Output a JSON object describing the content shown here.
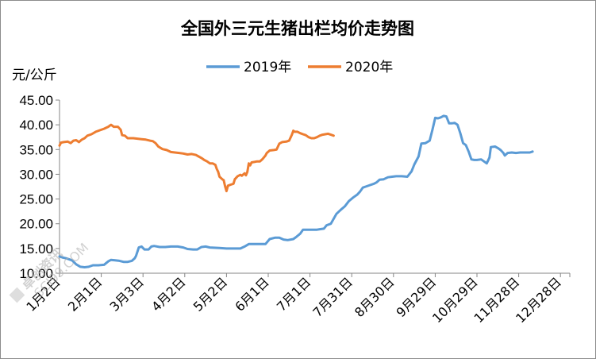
{
  "chart_data": {
    "type": "line",
    "title": "全国外三元生猪出栏均价走势图",
    "ylabel": "元/公斤",
    "ylim": [
      10,
      45
    ],
    "yticks": [
      "10.00",
      "15.00",
      "20.00",
      "25.00",
      "30.00",
      "35.00",
      "40.00",
      "45.00"
    ],
    "xticks": [
      "1月2日",
      "2月1日",
      "3月3日",
      "4月2日",
      "5月2日",
      "6月1日",
      "7月1日",
      "7月31日",
      "8月30日",
      "9月29日",
      "10月29日",
      "11月28日",
      "12月28日"
    ],
    "legend_position": "top",
    "grid": false,
    "series": [
      {
        "name": "2019年",
        "color": "#5b9bd5",
        "points": [
          [
            0,
            13.4
          ],
          [
            2,
            13.2
          ],
          [
            5,
            13.0
          ],
          [
            9,
            12.6
          ],
          [
            12,
            11.8
          ],
          [
            15,
            11.3
          ],
          [
            18,
            11.2
          ],
          [
            21,
            11.3
          ],
          [
            24,
            11.6
          ],
          [
            28,
            11.6
          ],
          [
            32,
            11.7
          ],
          [
            35,
            12.4
          ],
          [
            37,
            12.7
          ],
          [
            40,
            12.6
          ],
          [
            43,
            12.5
          ],
          [
            46,
            12.3
          ],
          [
            49,
            12.3
          ],
          [
            52,
            12.5
          ],
          [
            54,
            13.0
          ],
          [
            55,
            13.5
          ],
          [
            57,
            15.2
          ],
          [
            59,
            15.4
          ],
          [
            61,
            14.8
          ],
          [
            64,
            14.8
          ],
          [
            66,
            15.4
          ],
          [
            68,
            15.5
          ],
          [
            72,
            15.3
          ],
          [
            76,
            15.3
          ],
          [
            80,
            15.4
          ],
          [
            85,
            15.4
          ],
          [
            89,
            15.2
          ],
          [
            92,
            14.9
          ],
          [
            96,
            14.8
          ],
          [
            99,
            14.8
          ],
          [
            102,
            15.3
          ],
          [
            105,
            15.4
          ],
          [
            108,
            15.2
          ],
          [
            115,
            15.1
          ],
          [
            120,
            15.0
          ],
          [
            126,
            15.0
          ],
          [
            130,
            15.0
          ],
          [
            133,
            15.4
          ],
          [
            136,
            15.9
          ],
          [
            140,
            15.9
          ],
          [
            145,
            15.9
          ],
          [
            148,
            15.9
          ],
          [
            151,
            16.9
          ],
          [
            155,
            17.2
          ],
          [
            158,
            17.2
          ],
          [
            161,
            16.8
          ],
          [
            164,
            16.7
          ],
          [
            168,
            16.9
          ],
          [
            170,
            17.3
          ],
          [
            173,
            18.0
          ],
          [
            175,
            18.8
          ],
          [
            178,
            18.8
          ],
          [
            182,
            18.8
          ],
          [
            185,
            18.8
          ],
          [
            187,
            18.9
          ],
          [
            190,
            19.0
          ],
          [
            192,
            19.7
          ],
          [
            195,
            20.0
          ],
          [
            197,
            21.0
          ],
          [
            199,
            22.0
          ],
          [
            202,
            22.8
          ],
          [
            205,
            23.5
          ],
          [
            208,
            24.6
          ],
          [
            211,
            25.3
          ],
          [
            214,
            25.9
          ],
          [
            216,
            26.5
          ],
          [
            218,
            27.3
          ],
          [
            220,
            27.5
          ],
          [
            223,
            27.8
          ],
          [
            226,
            28.1
          ],
          [
            228,
            28.4
          ],
          [
            230,
            28.9
          ],
          [
            233,
            29.0
          ],
          [
            236,
            29.4
          ],
          [
            239,
            29.5
          ],
          [
            242,
            29.6
          ],
          [
            246,
            29.6
          ],
          [
            250,
            29.5
          ],
          [
            253,
            30.6
          ],
          [
            255,
            32.0
          ],
          [
            258,
            33.6
          ],
          [
            260,
            36.2
          ],
          [
            263,
            36.3
          ],
          [
            266,
            36.8
          ],
          [
            268,
            39.0
          ],
          [
            270,
            41.4
          ],
          [
            272,
            41.3
          ],
          [
            274,
            41.5
          ],
          [
            276,
            41.8
          ],
          [
            278,
            41.7
          ],
          [
            280,
            40.3
          ],
          [
            282,
            40.3
          ],
          [
            284,
            40.4
          ],
          [
            286,
            40.0
          ],
          [
            288,
            38.3
          ],
          [
            290,
            36.3
          ],
          [
            292,
            35.9
          ],
          [
            294,
            34.6
          ],
          [
            296,
            33.0
          ],
          [
            298,
            32.9
          ],
          [
            300,
            32.9
          ],
          [
            303,
            33.0
          ],
          [
            305,
            32.6
          ],
          [
            307,
            32.2
          ],
          [
            309,
            33.4
          ],
          [
            310,
            35.5
          ],
          [
            313,
            35.6
          ],
          [
            315,
            35.3
          ],
          [
            317,
            34.9
          ],
          [
            319,
            34.3
          ],
          [
            320,
            33.8
          ],
          [
            322,
            34.3
          ],
          [
            325,
            34.4
          ],
          [
            328,
            34.3
          ],
          [
            331,
            34.4
          ],
          [
            335,
            34.4
          ],
          [
            338,
            34.4
          ],
          [
            340,
            34.6
          ]
        ]
      },
      {
        "name": "2020年",
        "color": "#ed7d31",
        "points": [
          [
            0,
            35.8
          ],
          [
            1,
            36.4
          ],
          [
            3,
            36.5
          ],
          [
            6,
            36.6
          ],
          [
            8,
            36.3
          ],
          [
            10,
            36.8
          ],
          [
            12,
            36.9
          ],
          [
            14,
            36.5
          ],
          [
            16,
            37.0
          ],
          [
            18,
            37.3
          ],
          [
            20,
            37.8
          ],
          [
            23,
            38.1
          ],
          [
            26,
            38.6
          ],
          [
            29,
            38.9
          ],
          [
            32,
            39.2
          ],
          [
            35,
            39.6
          ],
          [
            37,
            40.0
          ],
          [
            39,
            39.6
          ],
          [
            42,
            39.6
          ],
          [
            44,
            39.0
          ],
          [
            45,
            37.9
          ],
          [
            47,
            37.8
          ],
          [
            49,
            37.3
          ],
          [
            51,
            37.3
          ],
          [
            53,
            37.3
          ],
          [
            56,
            37.2
          ],
          [
            59,
            37.1
          ],
          [
            62,
            37.0
          ],
          [
            65,
            36.8
          ],
          [
            67,
            36.7
          ],
          [
            69,
            36.3
          ],
          [
            71,
            35.6
          ],
          [
            74,
            35.1
          ],
          [
            77,
            34.9
          ],
          [
            80,
            34.5
          ],
          [
            83,
            34.4
          ],
          [
            86,
            34.3
          ],
          [
            89,
            34.2
          ],
          [
            92,
            34.0
          ],
          [
            95,
            34.1
          ],
          [
            98,
            33.9
          ],
          [
            100,
            33.6
          ],
          [
            102,
            33.3
          ],
          [
            104,
            32.9
          ],
          [
            106,
            32.6
          ],
          [
            108,
            32.2
          ],
          [
            110,
            32.2
          ],
          [
            112,
            31.9
          ],
          [
            113,
            31.1
          ],
          [
            114,
            30.5
          ],
          [
            115,
            29.5
          ],
          [
            117,
            29.0
          ],
          [
            118,
            28.8
          ],
          [
            119,
            27.6
          ],
          [
            120,
            26.6
          ],
          [
            121,
            27.7
          ],
          [
            123,
            27.9
          ],
          [
            125,
            28.1
          ],
          [
            126,
            29.0
          ],
          [
            128,
            29.6
          ],
          [
            130,
            29.9
          ],
          [
            131,
            29.7
          ],
          [
            133,
            30.2
          ],
          [
            134,
            29.8
          ],
          [
            135,
            30.5
          ],
          [
            136,
            32.2
          ],
          [
            137,
            31.8
          ],
          [
            138,
            32.4
          ],
          [
            140,
            32.5
          ],
          [
            142,
            32.6
          ],
          [
            144,
            32.6
          ],
          [
            146,
            33.1
          ],
          [
            148,
            33.8
          ],
          [
            149,
            34.3
          ],
          [
            151,
            34.8
          ],
          [
            154,
            34.9
          ],
          [
            156,
            35.0
          ],
          [
            158,
            36.2
          ],
          [
            160,
            36.5
          ],
          [
            163,
            36.6
          ],
          [
            165,
            36.8
          ],
          [
            167,
            38.0
          ],
          [
            168,
            38.8
          ],
          [
            169,
            38.6
          ],
          [
            171,
            38.6
          ],
          [
            173,
            38.3
          ],
          [
            175,
            38.1
          ],
          [
            177,
            37.9
          ],
          [
            179,
            37.5
          ],
          [
            181,
            37.3
          ],
          [
            183,
            37.3
          ],
          [
            185,
            37.5
          ],
          [
            187,
            37.8
          ],
          [
            189,
            38.0
          ],
          [
            191,
            38.1
          ],
          [
            193,
            38.2
          ],
          [
            195,
            38.0
          ],
          [
            197,
            37.8
          ]
        ]
      }
    ]
  },
  "watermark": {
    "line1": "卓创资讯",
    "line2": "SCI99.COM"
  }
}
